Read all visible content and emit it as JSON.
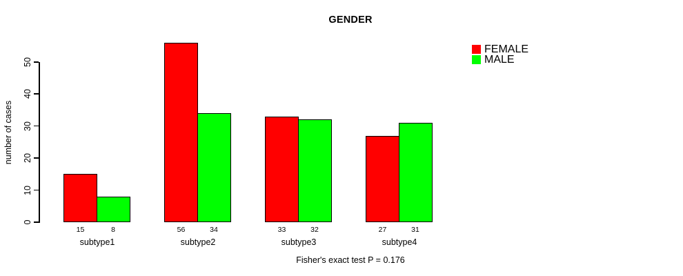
{
  "page": {
    "background": "#ffffff",
    "text_color": "#000000"
  },
  "chart_data": {
    "type": "bar",
    "title": "GENDER",
    "xlabel": "",
    "ylabel": "number of cases",
    "categories": [
      "subtype1",
      "subtype2",
      "subtype3",
      "subtype4"
    ],
    "series": [
      {
        "name": "FEMALE",
        "color": "#ff0000",
        "values": [
          15,
          56,
          33,
          27
        ]
      },
      {
        "name": "MALE",
        "color": "#00ff00",
        "values": [
          8,
          34,
          32,
          31
        ]
      }
    ],
    "yticks": [
      0,
      10,
      20,
      30,
      40,
      50
    ],
    "ylim": [
      0,
      56
    ],
    "grid": false,
    "bar_border_color": "#000000",
    "show_value_labels": true,
    "legend_position": "top-right",
    "annotation": "Fisher's exact test P = 0.176"
  }
}
